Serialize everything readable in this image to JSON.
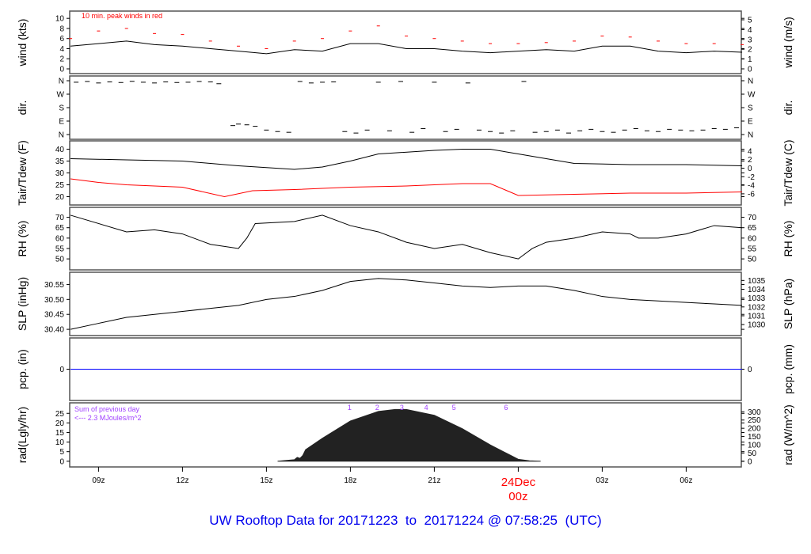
{
  "title": "UW Rooftop Data for 20171223  to  20171224 @ 07:58:25  (UTC)",
  "chart_data": [
    {
      "type": "line",
      "ylabel": "wind (kts)",
      "ylabel_right": "wind (m/s)",
      "ylim": [
        0,
        10.5
      ],
      "yticks": [
        0,
        2,
        4,
        6,
        8,
        10
      ],
      "yticks_right": [
        0,
        1,
        2,
        3,
        4,
        5
      ],
      "annotation": "10 min. peak winds in red",
      "series": [
        {
          "color": "#000000",
          "x": [
            8,
            9,
            10,
            11,
            12,
            13,
            14,
            15,
            16,
            17,
            18,
            19,
            20,
            21,
            22,
            23,
            24,
            25,
            26,
            27,
            28,
            29,
            30,
            31,
            32
          ],
          "y": [
            4.5,
            5,
            5.5,
            4.8,
            4.5,
            4,
            3.5,
            3,
            3.8,
            3.5,
            5,
            5,
            4,
            4,
            3.5,
            3.2,
            3.5,
            3.8,
            3.5,
            4.5,
            4.5,
            3.5,
            3.2,
            3.5,
            3.3
          ]
        },
        {
          "color": "#ff0000",
          "marker": "dash",
          "x": [
            8,
            9,
            10,
            11,
            12,
            13,
            14,
            15,
            16,
            17,
            18,
            19,
            20,
            21,
            22,
            23,
            24,
            25,
            26,
            27,
            28,
            29,
            30,
            31,
            32
          ],
          "y": [
            6,
            7.5,
            8,
            7,
            6.8,
            5.5,
            4.5,
            4,
            5.5,
            6,
            7.5,
            8.5,
            6.5,
            6,
            5.5,
            5,
            5,
            5.2,
            5.5,
            6.5,
            6.3,
            5.5,
            5,
            5,
            4.8
          ]
        }
      ]
    },
    {
      "type": "scatter",
      "ylabel": "dir.",
      "ylabel_right": "dir.",
      "ylim": [
        0,
        360
      ],
      "ytick_labels": [
        "N",
        "E",
        "S",
        "W",
        "N"
      ],
      "yticks": [
        0,
        90,
        180,
        270,
        360
      ],
      "series": [
        {
          "color": "#000000",
          "x": [
            8.2,
            8.6,
            9,
            9.4,
            9.8,
            10.2,
            10.6,
            11,
            11.4,
            11.8,
            12.2,
            12.6,
            13,
            13.3,
            13.8,
            14,
            14.3,
            14.6,
            15,
            15.4,
            15.8,
            16.2,
            16.6,
            17,
            17.4,
            17.8,
            18.2,
            18.6,
            19,
            19.4,
            19.8,
            20.2,
            20.6,
            21,
            21.4,
            21.8,
            22.2,
            22.6,
            23,
            23.4,
            23.8,
            24.2,
            24.6,
            25,
            25.4,
            25.8,
            26.2,
            26.6,
            27,
            27.4,
            27.8,
            28.2,
            28.6,
            29,
            29.4,
            29.8,
            30.2,
            30.6,
            31,
            31.4,
            31.8
          ],
          "y": [
            350,
            355,
            345,
            352,
            348,
            356,
            350,
            345,
            352,
            348,
            350,
            355,
            352,
            340,
            60,
            70,
            65,
            55,
            30,
            20,
            15,
            355,
            345,
            350,
            352,
            20,
            10,
            30,
            350,
            25,
            355,
            15,
            40,
            350,
            20,
            35,
            345,
            30,
            20,
            10,
            25,
            355,
            15,
            20,
            30,
            10,
            25,
            35,
            20,
            15,
            30,
            40,
            25,
            20,
            35,
            30,
            25,
            30,
            40,
            35,
            45
          ]
        }
      ]
    },
    {
      "type": "line",
      "ylabel": "Tair/Tdew (F)",
      "ylabel_right": "Tair/Tdew (C)",
      "ylim": [
        18.5,
        41.5
      ],
      "yticks": [
        20,
        25,
        30,
        35,
        40
      ],
      "yticks_right": [
        -6,
        -4,
        -2,
        0,
        2,
        4
      ],
      "series": [
        {
          "color": "#000000",
          "x": [
            8,
            10,
            12,
            14,
            16,
            17,
            18,
            19,
            21,
            22,
            23,
            24,
            25,
            26,
            28,
            30,
            32
          ],
          "y": [
            36,
            35.5,
            35,
            33,
            31.5,
            32.5,
            35,
            38,
            39.5,
            40,
            40,
            38,
            36,
            34,
            33.5,
            33.5,
            33
          ]
        },
        {
          "color": "#ff0000",
          "x": [
            8,
            9,
            10,
            12,
            13.5,
            14.5,
            16,
            18,
            20,
            22,
            23,
            23.5,
            24,
            26,
            28,
            30,
            32
          ],
          "y": [
            27.5,
            26,
            25,
            24,
            20,
            22.5,
            23,
            24,
            24.5,
            25.5,
            25.5,
            23,
            20.5,
            21,
            21.5,
            21.5,
            22
          ]
        }
      ]
    },
    {
      "type": "line",
      "ylabel": "RH (%)",
      "ylabel_right": "RH (%)",
      "ylim": [
        47,
        72.5
      ],
      "yticks": [
        50,
        55,
        60,
        65,
        70
      ],
      "series": [
        {
          "color": "#000000",
          "x": [
            8,
            10,
            11,
            12,
            13,
            14,
            14.3,
            14.6,
            16,
            17,
            18,
            19,
            20,
            21,
            22,
            23,
            24,
            24.5,
            25,
            26,
            27,
            28,
            28.3,
            29,
            30,
            31,
            32
          ],
          "y": [
            71,
            63,
            64,
            62,
            57,
            55,
            60,
            67,
            68,
            71,
            66,
            63,
            58,
            55,
            57,
            53,
            50,
            55,
            58,
            60,
            63,
            62,
            60,
            60,
            62,
            66,
            65
          ]
        }
      ]
    },
    {
      "type": "line",
      "ylabel": "SLP (inHg)",
      "ylabel_right": "SLP (hPa)",
      "ylim": [
        30.395,
        30.575
      ],
      "yticks": [
        30.4,
        30.45,
        30.5,
        30.55
      ],
      "yticks_right": [
        1030,
        1031,
        1032,
        1033,
        1034,
        1035
      ],
      "series": [
        {
          "color": "#000000",
          "x": [
            8,
            9,
            10,
            11,
            12,
            13,
            14,
            15,
            16,
            17,
            18,
            19,
            20,
            21,
            22,
            23,
            24,
            25,
            26,
            27,
            28,
            29,
            30,
            31,
            32
          ],
          "y": [
            30.4,
            30.42,
            30.44,
            30.45,
            30.46,
            30.47,
            30.48,
            30.5,
            30.51,
            30.53,
            30.56,
            30.57,
            30.565,
            30.555,
            30.545,
            30.54,
            30.545,
            30.545,
            30.53,
            30.51,
            30.5,
            30.495,
            30.49,
            30.485,
            30.48
          ]
        }
      ]
    },
    {
      "type": "line",
      "ylabel": "pcp. (in)",
      "ylabel_right": "pcp. (mm)",
      "ylim": [
        -1,
        1
      ],
      "yticks": [
        0
      ],
      "yticks_right": [
        0
      ],
      "series": [
        {
          "color": "#0000ff",
          "x": [
            8,
            32
          ],
          "y": [
            0,
            0
          ]
        }
      ]
    },
    {
      "type": "area",
      "ylabel": "rad(Lgly/hr)",
      "ylabel_right": "rad (W/m^2)",
      "ylim": [
        -0.5,
        28
      ],
      "yticks": [
        0,
        5,
        10,
        15,
        20,
        25
      ],
      "yticks_right": [
        0,
        50,
        100,
        150,
        200,
        250,
        300
      ],
      "annotation": [
        "Sum of previous day",
        "<--- 2.3 MJoules/m^2"
      ],
      "markers": {
        "labels": [
          "1",
          "2",
          "3",
          "4",
          "5",
          "6"
        ],
        "x": [
          17.97,
          18.96,
          19.84,
          20.71,
          21.7,
          23.56
        ]
      },
      "series": [
        {
          "color": "#222222",
          "x": [
            15.4,
            16,
            16.1,
            16.2,
            16.3,
            16.4,
            17,
            18,
            19,
            19.6,
            20,
            21,
            22,
            23,
            23.6,
            24,
            24.4,
            24.8
          ],
          "y": [
            0,
            0.8,
            2,
            1.5,
            3,
            6,
            12,
            21,
            26,
            27,
            27,
            24,
            17,
            8.5,
            4,
            1,
            0.2,
            0
          ]
        }
      ]
    }
  ],
  "xaxis": {
    "range": [
      7.97,
      31.97
    ],
    "ticks": [
      9,
      12,
      15,
      18,
      21,
      24,
      27,
      30
    ],
    "tick_labels": [
      "09z",
      "12z",
      "15z",
      "18z",
      "21z",
      "",
      "03z",
      "06z"
    ],
    "day_label": "24Dec",
    "day_label_time": "00z",
    "day_color": "#ff0000"
  }
}
